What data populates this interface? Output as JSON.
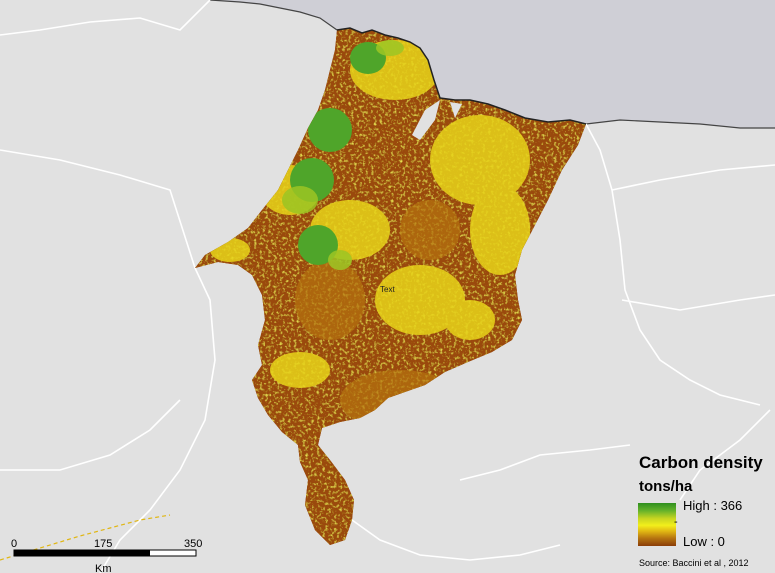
{
  "legend": {
    "title": "Carbon density",
    "unit": "tons/ha",
    "high_label": "High : 366",
    "low_label": "Low : 0",
    "mid_marker": "-",
    "ramp_colors": [
      "#2f8f1f",
      "#66b32a",
      "#c7d521",
      "#f2ef1b",
      "#e0b613",
      "#b57410",
      "#8a3c08"
    ]
  },
  "source": "Source: Baccini et al , 2012",
  "scale_bar": {
    "ticks": [
      "0",
      "175",
      "350"
    ],
    "unit": "Km"
  },
  "map_label": "Text",
  "colors": {
    "land_background": "#e1e1e1",
    "ocean": "#cfcfd6",
    "boundary_lines": "#ffffff",
    "low_carbon": "#8a3c08",
    "mid_carbon": "#f2ef1b",
    "high_carbon": "#2f8f1f"
  }
}
